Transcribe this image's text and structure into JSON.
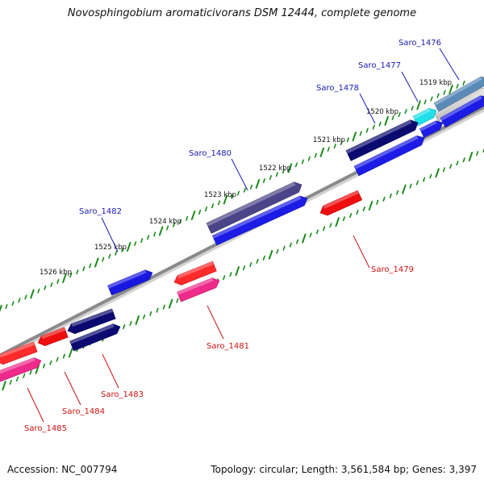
{
  "title": "Novosphingobium aromaticivorans DSM 12444, complete genome",
  "footer": {
    "accession": "Accession: NC_007794",
    "summary": "Topology: circular; Length: 3,561,584 bp; Genes: 3,397"
  },
  "colors": {
    "backbone": "#8a8a8a",
    "tick": "#1a8a1a",
    "top_label": "#1a1ab0",
    "bottom_label": "#cc1111"
  },
  "kbp_labels": [
    "1519 kbp",
    "1520 kbp",
    "1521 kbp",
    "1522 kbp",
    "1523 kbp",
    "1524 kbp",
    "1525 kbp",
    "1526 kbp"
  ],
  "genes": [
    {
      "name": "Saro_1476",
      "color": "#5a8ab8",
      "strand": "top"
    },
    {
      "name": "Saro_1477",
      "color": "#20e0e8",
      "strand": "top"
    },
    {
      "name": "Saro_1478",
      "color": "#0a0a70",
      "strand": "top"
    },
    {
      "name": "Saro_1479",
      "color": "#ee0e0e",
      "strand": "bottom"
    },
    {
      "name": "Saro_1480",
      "color": "#4a4488",
      "strand": "top"
    },
    {
      "name": "Saro_1481",
      "color": "#ff2a2a",
      "strand": "bottom"
    },
    {
      "name": "Saro_1482",
      "color": "#1818e0",
      "strand": "top"
    },
    {
      "name": "Saro_1483",
      "color": "#0a0a70",
      "strand": "bottom"
    },
    {
      "name": "Saro_1484",
      "color": "#ee0e0e",
      "strand": "bottom"
    },
    {
      "name": "Saro_1485",
      "color": "#ff2a2a",
      "strand": "bottom"
    }
  ]
}
